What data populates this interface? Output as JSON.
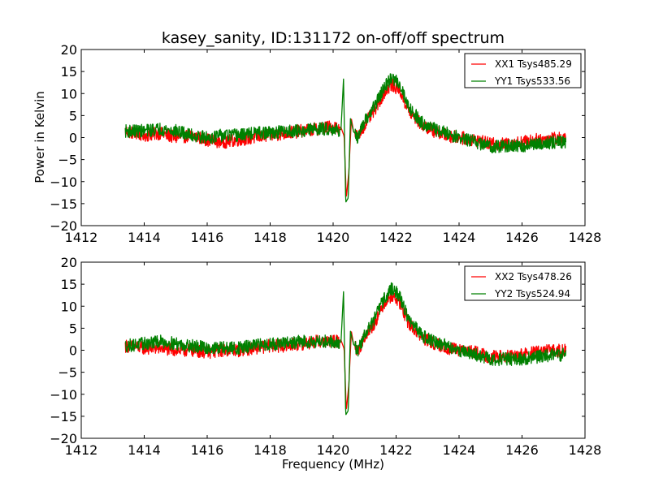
{
  "title": "kasey_sanity, ID:131172 on-off/off spectrum",
  "xlabel": "Frequency (MHz)",
  "ylabel": "Power in Kelvin",
  "colors": {
    "xx": "#ff0000",
    "yy": "#008000"
  },
  "chart_data": [
    {
      "type": "line",
      "xlim": [
        1412,
        1428
      ],
      "ylim": [
        -20,
        20
      ],
      "xticks": [
        "1412",
        "1414",
        "1416",
        "1418",
        "1420",
        "1422",
        "1424",
        "1426",
        "1428"
      ],
      "yticks": [
        "20",
        "15",
        "10",
        "5",
        "0",
        "−5",
        "−10",
        "−15",
        "−20"
      ],
      "legend_position": "top-right",
      "series": [
        {
          "name": "XX1 Tsys485.29",
          "color": "#ff0000",
          "x": [
            1413.4,
            1414.0,
            1414.5,
            1415.0,
            1415.5,
            1416.0,
            1416.5,
            1417.0,
            1417.5,
            1418.0,
            1418.5,
            1419.0,
            1419.5,
            1420.0,
            1420.25,
            1420.35,
            1420.42,
            1420.5,
            1420.58,
            1420.65,
            1420.8,
            1421.0,
            1421.3,
            1421.6,
            1421.85,
            1422.1,
            1422.4,
            1422.8,
            1423.2,
            1423.6,
            1424.0,
            1424.5,
            1425.0,
            1425.5,
            1426.0,
            1426.5,
            1427.0,
            1427.4
          ],
          "y": [
            1.5,
            0.5,
            1.0,
            0.0,
            0.5,
            -0.5,
            -1.0,
            -0.5,
            0.0,
            0.5,
            1.0,
            1.5,
            2.0,
            2.5,
            2.0,
            0.0,
            -14.0,
            -8.0,
            4.0,
            1.0,
            0.0,
            3.0,
            6.0,
            10.0,
            12.0,
            11.0,
            6.0,
            3.0,
            1.5,
            0.5,
            0.0,
            -0.5,
            -1.5,
            -1.5,
            -1.0,
            -0.5,
            0.0,
            -0.5
          ]
        },
        {
          "name": "YY1 Tsys533.56",
          "color": "#008000",
          "x": [
            1413.4,
            1414.0,
            1414.5,
            1415.0,
            1415.5,
            1416.0,
            1416.5,
            1417.0,
            1417.5,
            1418.0,
            1418.5,
            1419.0,
            1419.5,
            1420.0,
            1420.25,
            1420.33,
            1420.4,
            1420.48,
            1420.55,
            1420.65,
            1420.8,
            1421.0,
            1421.3,
            1421.6,
            1421.85,
            1422.1,
            1422.4,
            1422.8,
            1423.2,
            1423.6,
            1424.0,
            1424.5,
            1425.0,
            1425.5,
            1426.0,
            1426.5,
            1427.0,
            1427.4
          ],
          "y": [
            1.5,
            1.5,
            2.0,
            1.5,
            0.5,
            0.0,
            0.5,
            0.5,
            1.0,
            1.0,
            1.5,
            1.5,
            2.0,
            2.0,
            1.5,
            13.0,
            -15.0,
            -14.0,
            4.0,
            1.0,
            0.0,
            3.5,
            7.0,
            11.0,
            13.5,
            12.5,
            7.0,
            3.5,
            2.0,
            1.0,
            0.0,
            -1.0,
            -2.0,
            -2.0,
            -2.0,
            -1.5,
            -1.0,
            -1.0
          ]
        }
      ]
    },
    {
      "type": "line",
      "xlim": [
        1412,
        1428
      ],
      "ylim": [
        -20,
        20
      ],
      "xticks": [
        "1412",
        "1414",
        "1416",
        "1418",
        "1420",
        "1422",
        "1424",
        "1426",
        "1428"
      ],
      "yticks": [
        "20",
        "15",
        "10",
        "5",
        "0",
        "−5",
        "−10",
        "−15",
        "−20"
      ],
      "legend_position": "top-right",
      "series": [
        {
          "name": "XX2 Tsys478.26",
          "color": "#ff0000",
          "x": [
            1413.4,
            1414.0,
            1414.5,
            1415.0,
            1415.5,
            1416.0,
            1416.5,
            1417.0,
            1417.5,
            1418.0,
            1418.5,
            1419.0,
            1419.5,
            1420.0,
            1420.25,
            1420.35,
            1420.42,
            1420.5,
            1420.58,
            1420.65,
            1420.8,
            1421.0,
            1421.3,
            1421.6,
            1421.85,
            1422.1,
            1422.4,
            1422.8,
            1423.2,
            1423.6,
            1424.0,
            1424.5,
            1425.0,
            1425.5,
            1426.0,
            1426.5,
            1427.0,
            1427.4
          ],
          "y": [
            1.0,
            0.5,
            0.5,
            0.0,
            0.0,
            -0.5,
            0.0,
            0.0,
            0.5,
            1.0,
            1.0,
            1.5,
            2.0,
            2.0,
            2.0,
            0.0,
            -14.0,
            -8.0,
            4.0,
            1.0,
            0.0,
            3.0,
            6.0,
            10.5,
            12.5,
            11.0,
            6.0,
            3.0,
            1.5,
            0.5,
            0.0,
            -0.5,
            -1.5,
            -1.5,
            -1.0,
            -0.5,
            0.0,
            0.0
          ]
        },
        {
          "name": "YY2 Tsys524.94",
          "color": "#008000",
          "x": [
            1413.4,
            1414.0,
            1414.5,
            1415.0,
            1415.5,
            1416.0,
            1416.5,
            1417.0,
            1417.5,
            1418.0,
            1418.5,
            1419.0,
            1419.5,
            1420.0,
            1420.25,
            1420.33,
            1420.4,
            1420.48,
            1420.55,
            1420.65,
            1420.8,
            1421.0,
            1421.3,
            1421.6,
            1421.85,
            1422.1,
            1422.4,
            1422.8,
            1423.2,
            1423.6,
            1424.0,
            1424.5,
            1425.0,
            1425.5,
            1426.0,
            1426.5,
            1427.0,
            1427.4
          ],
          "y": [
            1.0,
            1.5,
            2.0,
            1.5,
            1.0,
            0.5,
            0.5,
            0.5,
            1.0,
            1.5,
            1.5,
            2.0,
            2.0,
            2.0,
            1.5,
            13.0,
            -15.0,
            -14.0,
            4.0,
            1.0,
            0.0,
            3.5,
            7.0,
            11.5,
            14.0,
            12.5,
            7.0,
            3.5,
            2.0,
            1.0,
            0.0,
            -1.0,
            -2.0,
            -2.0,
            -2.0,
            -1.5,
            -1.0,
            -1.0
          ]
        }
      ]
    }
  ]
}
